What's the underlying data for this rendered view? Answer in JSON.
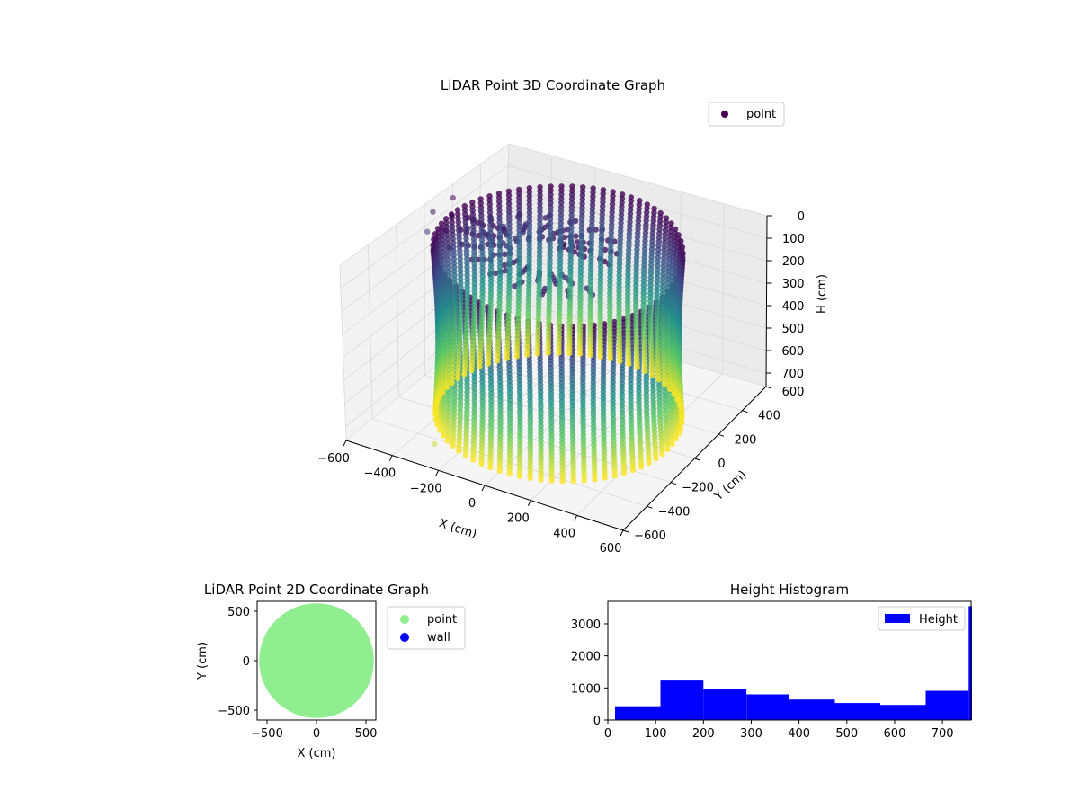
{
  "chart_data": [
    {
      "type": "scatter",
      "projection": "3d",
      "title": "LiDAR Point 3D Coordinate Graph",
      "xlabel": "X (cm)",
      "ylabel": "Y (cm)",
      "zlabel": "H (cm)",
      "xlim": [
        -600,
        600
      ],
      "ylim": [
        -600,
        600
      ],
      "zlim": [
        760,
        0
      ],
      "z_inverted": true,
      "xticks": [
        "−600",
        "−400",
        "−200",
        "0",
        "200",
        "400",
        "600"
      ],
      "yticks": [
        "−600",
        "−400",
        "−200",
        "0",
        "200",
        "400",
        "600"
      ],
      "zticks": [
        "0",
        "100",
        "200",
        "300",
        "400",
        "500",
        "600",
        "700"
      ],
      "colormap": "viridis",
      "colormap_stops": [
        "#440154",
        "#3b528b",
        "#21918c",
        "#5ec962",
        "#fde725"
      ],
      "legend": {
        "position": "top-right",
        "entries": [
          "point"
        ],
        "marker_color": "#440154"
      },
      "grid": true,
      "series": [
        {
          "name": "point",
          "description_points": {
            "main_wall": {
              "shape": "cylinder",
              "radius": 480,
              "h_range": [
                0,
                760
              ]
            },
            "outliers": [
              {
                "x": -560,
                "y": 140,
                "h": 20
              },
              {
                "x": -600,
                "y": 60,
                "h": 60
              },
              {
                "x": -600,
                "y": 20,
                "h": 130
              },
              {
                "x": -470,
                "y": 150,
                "h": 90
              },
              {
                "x": -260,
                "y": -520,
                "h": 700
              }
            ]
          }
        }
      ]
    },
    {
      "type": "scatter",
      "title": "LiDAR Point 2D Coordinate Graph",
      "xlabel": "X (cm)",
      "ylabel": "Y (cm)",
      "xlim": [
        -600,
        600
      ],
      "ylim": [
        -600,
        600
      ],
      "xticks": [
        "−500",
        "0",
        "500"
      ],
      "yticks": [
        "500",
        "0",
        "−500"
      ],
      "legend": {
        "position": "outside-right",
        "entries": [
          {
            "name": "point",
            "color": "#90ee90"
          },
          {
            "name": "wall",
            "color": "#0000ff"
          }
        ]
      },
      "series": [
        {
          "name": "point",
          "color": "#90ee90",
          "shape": "disk",
          "radius": 580
        },
        {
          "name": "wall",
          "color": "#0000ff",
          "values": []
        }
      ]
    },
    {
      "type": "bar",
      "subtype": "histogram",
      "title": "Height Histogram",
      "xlim": [
        0,
        760
      ],
      "ylim": [
        0,
        3700
      ],
      "xticks": [
        0,
        100,
        200,
        300,
        400,
        500,
        600,
        700
      ],
      "yticks": [
        0,
        1000,
        2000,
        3000
      ],
      "legend": {
        "position": "top-right",
        "entries": [
          "Height"
        ]
      },
      "color": "#0000ff",
      "series": [
        {
          "name": "Height",
          "bins": [
            {
              "x0": 15,
              "x1": 110,
              "count": 430
            },
            {
              "x0": 110,
              "x1": 200,
              "count": 1230
            },
            {
              "x0": 200,
              "x1": 290,
              "count": 980
            },
            {
              "x0": 290,
              "x1": 380,
              "count": 800
            },
            {
              "x0": 380,
              "x1": 475,
              "count": 640
            },
            {
              "x0": 475,
              "x1": 570,
              "count": 530
            },
            {
              "x0": 570,
              "x1": 665,
              "count": 470
            },
            {
              "x0": 665,
              "x1": 755,
              "count": 910
            },
            {
              "x0": 755,
              "x1": 762,
              "count": 3550
            }
          ]
        }
      ]
    }
  ]
}
